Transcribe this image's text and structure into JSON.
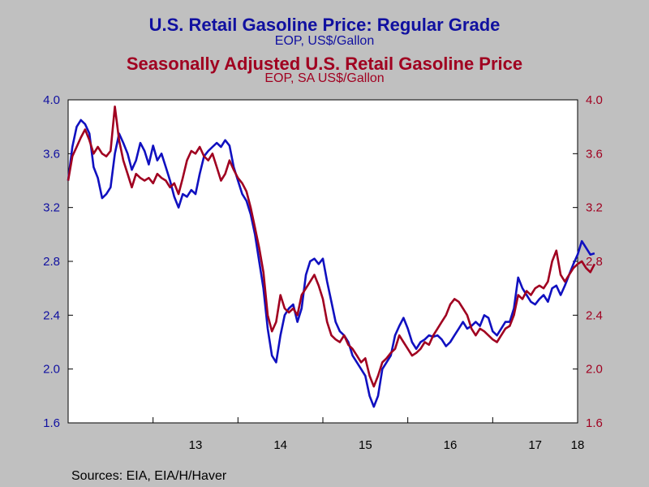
{
  "chart_data": {
    "type": "line",
    "titles": [
      {
        "text": "U.S. Retail Gasoline Price: Regular Grade",
        "color": "#1010a0"
      },
      {
        "text": "EOP, US$/Gallon",
        "color": "#1010a0"
      },
      {
        "text": "Seasonally Adjusted U.S. Retail Gasoline Price",
        "color": "#a00020"
      },
      {
        "text": "EOP, SA US$/Gallon",
        "color": "#a00020"
      }
    ],
    "y_left": {
      "min": 1.6,
      "max": 4.0,
      "ticks": [
        "1.6",
        "2.0",
        "2.4",
        "2.8",
        "3.2",
        "3.6",
        "4.0"
      ],
      "color": "#1010a0"
    },
    "y_right": {
      "min": 1.6,
      "max": 4.0,
      "ticks": [
        "1.6",
        "2.0",
        "2.4",
        "2.8",
        "3.2",
        "3.6",
        "4.0"
      ],
      "color": "#a00020"
    },
    "x_axis": {
      "min": 2012.0,
      "max": 2018.0,
      "tick_labels": [
        "13",
        "14",
        "15",
        "16",
        "17",
        "18"
      ],
      "tick_label_positions": [
        2013.5,
        2014.5,
        2015.5,
        2016.5,
        2017.5,
        2018.0
      ]
    },
    "grid": false,
    "source": "Sources:  EIA, EIA/H/Haver",
    "series": [
      {
        "color": "#1010c0",
        "points": [
          [
            2012.0,
            3.4
          ],
          [
            2012.05,
            3.65
          ],
          [
            2012.1,
            3.8
          ],
          [
            2012.15,
            3.85
          ],
          [
            2012.2,
            3.82
          ],
          [
            2012.25,
            3.75
          ],
          [
            2012.3,
            3.5
          ],
          [
            2012.35,
            3.42
          ],
          [
            2012.4,
            3.27
          ],
          [
            2012.45,
            3.3
          ],
          [
            2012.5,
            3.35
          ],
          [
            2012.55,
            3.6
          ],
          [
            2012.6,
            3.75
          ],
          [
            2012.65,
            3.68
          ],
          [
            2012.7,
            3.6
          ],
          [
            2012.75,
            3.48
          ],
          [
            2012.8,
            3.55
          ],
          [
            2012.85,
            3.68
          ],
          [
            2012.9,
            3.62
          ],
          [
            2012.95,
            3.52
          ],
          [
            2013.0,
            3.66
          ],
          [
            2013.05,
            3.55
          ],
          [
            2013.1,
            3.6
          ],
          [
            2013.15,
            3.5
          ],
          [
            2013.2,
            3.4
          ],
          [
            2013.25,
            3.28
          ],
          [
            2013.3,
            3.2
          ],
          [
            2013.35,
            3.3
          ],
          [
            2013.4,
            3.28
          ],
          [
            2013.45,
            3.33
          ],
          [
            2013.5,
            3.3
          ],
          [
            2013.55,
            3.45
          ],
          [
            2013.6,
            3.58
          ],
          [
            2013.65,
            3.62
          ],
          [
            2013.7,
            3.65
          ],
          [
            2013.75,
            3.68
          ],
          [
            2013.8,
            3.65
          ],
          [
            2013.85,
            3.7
          ],
          [
            2013.9,
            3.66
          ],
          [
            2013.95,
            3.5
          ],
          [
            2014.0,
            3.4
          ],
          [
            2014.05,
            3.3
          ],
          [
            2014.1,
            3.25
          ],
          [
            2014.15,
            3.15
          ],
          [
            2014.2,
            3.0
          ],
          [
            2014.25,
            2.8
          ],
          [
            2014.3,
            2.6
          ],
          [
            2014.35,
            2.3
          ],
          [
            2014.4,
            2.1
          ],
          [
            2014.45,
            2.05
          ],
          [
            2014.5,
            2.25
          ],
          [
            2014.55,
            2.4
          ],
          [
            2014.6,
            2.45
          ],
          [
            2014.65,
            2.48
          ],
          [
            2014.7,
            2.35
          ],
          [
            2014.75,
            2.45
          ],
          [
            2014.8,
            2.7
          ],
          [
            2014.85,
            2.8
          ],
          [
            2014.9,
            2.82
          ],
          [
            2014.95,
            2.78
          ],
          [
            2015.0,
            2.82
          ],
          [
            2015.05,
            2.65
          ],
          [
            2015.1,
            2.5
          ],
          [
            2015.15,
            2.35
          ],
          [
            2015.2,
            2.28
          ],
          [
            2015.25,
            2.25
          ],
          [
            2015.3,
            2.2
          ],
          [
            2015.35,
            2.1
          ],
          [
            2015.4,
            2.05
          ],
          [
            2015.45,
            2.0
          ],
          [
            2015.5,
            1.95
          ],
          [
            2015.55,
            1.8
          ],
          [
            2015.6,
            1.72
          ],
          [
            2015.65,
            1.8
          ],
          [
            2015.7,
            2.0
          ],
          [
            2015.75,
            2.05
          ],
          [
            2015.8,
            2.1
          ],
          [
            2015.85,
            2.25
          ],
          [
            2015.9,
            2.32
          ],
          [
            2015.95,
            2.38
          ],
          [
            2016.0,
            2.3
          ],
          [
            2016.05,
            2.2
          ],
          [
            2016.1,
            2.15
          ],
          [
            2016.15,
            2.2
          ],
          [
            2016.2,
            2.22
          ],
          [
            2016.25,
            2.25
          ],
          [
            2016.3,
            2.24
          ],
          [
            2016.35,
            2.25
          ],
          [
            2016.4,
            2.22
          ],
          [
            2016.45,
            2.17
          ],
          [
            2016.5,
            2.2
          ],
          [
            2016.55,
            2.25
          ],
          [
            2016.6,
            2.3
          ],
          [
            2016.65,
            2.35
          ],
          [
            2016.7,
            2.3
          ],
          [
            2016.75,
            2.32
          ],
          [
            2016.8,
            2.35
          ],
          [
            2016.85,
            2.32
          ],
          [
            2016.9,
            2.4
          ],
          [
            2016.95,
            2.38
          ],
          [
            2017.0,
            2.28
          ],
          [
            2017.05,
            2.25
          ],
          [
            2017.1,
            2.3
          ],
          [
            2017.15,
            2.35
          ],
          [
            2017.2,
            2.35
          ],
          [
            2017.25,
            2.45
          ],
          [
            2017.3,
            2.68
          ],
          [
            2017.35,
            2.6
          ],
          [
            2017.4,
            2.55
          ],
          [
            2017.45,
            2.5
          ],
          [
            2017.5,
            2.48
          ],
          [
            2017.55,
            2.52
          ],
          [
            2017.6,
            2.55
          ],
          [
            2017.65,
            2.5
          ],
          [
            2017.7,
            2.6
          ],
          [
            2017.75,
            2.62
          ],
          [
            2017.8,
            2.55
          ],
          [
            2017.85,
            2.62
          ],
          [
            2017.9,
            2.7
          ],
          [
            2017.95,
            2.78
          ],
          [
            2018.0,
            2.85
          ],
          [
            2018.05,
            2.95
          ],
          [
            2018.1,
            2.9
          ],
          [
            2018.15,
            2.85
          ],
          [
            2018.2,
            2.86
          ]
        ]
      },
      {
        "color": "#a00020",
        "points": [
          [
            2012.0,
            3.4
          ],
          [
            2012.05,
            3.58
          ],
          [
            2012.1,
            3.65
          ],
          [
            2012.15,
            3.72
          ],
          [
            2012.2,
            3.78
          ],
          [
            2012.25,
            3.7
          ],
          [
            2012.3,
            3.6
          ],
          [
            2012.35,
            3.65
          ],
          [
            2012.4,
            3.6
          ],
          [
            2012.45,
            3.58
          ],
          [
            2012.5,
            3.62
          ],
          [
            2012.55,
            3.95
          ],
          [
            2012.6,
            3.7
          ],
          [
            2012.65,
            3.55
          ],
          [
            2012.7,
            3.45
          ],
          [
            2012.75,
            3.35
          ],
          [
            2012.8,
            3.45
          ],
          [
            2012.85,
            3.42
          ],
          [
            2012.9,
            3.4
          ],
          [
            2012.95,
            3.42
          ],
          [
            2013.0,
            3.38
          ],
          [
            2013.05,
            3.45
          ],
          [
            2013.1,
            3.42
          ],
          [
            2013.15,
            3.4
          ],
          [
            2013.2,
            3.35
          ],
          [
            2013.25,
            3.38
          ],
          [
            2013.3,
            3.3
          ],
          [
            2013.35,
            3.42
          ],
          [
            2013.4,
            3.55
          ],
          [
            2013.45,
            3.62
          ],
          [
            2013.5,
            3.6
          ],
          [
            2013.55,
            3.65
          ],
          [
            2013.6,
            3.58
          ],
          [
            2013.65,
            3.55
          ],
          [
            2013.7,
            3.6
          ],
          [
            2013.75,
            3.5
          ],
          [
            2013.8,
            3.4
          ],
          [
            2013.85,
            3.45
          ],
          [
            2013.9,
            3.55
          ],
          [
            2013.95,
            3.48
          ],
          [
            2014.0,
            3.42
          ],
          [
            2014.05,
            3.38
          ],
          [
            2014.1,
            3.32
          ],
          [
            2014.15,
            3.2
          ],
          [
            2014.2,
            3.05
          ],
          [
            2014.25,
            2.9
          ],
          [
            2014.3,
            2.72
          ],
          [
            2014.35,
            2.4
          ],
          [
            2014.4,
            2.28
          ],
          [
            2014.45,
            2.35
          ],
          [
            2014.5,
            2.55
          ],
          [
            2014.55,
            2.45
          ],
          [
            2014.6,
            2.42
          ],
          [
            2014.65,
            2.45
          ],
          [
            2014.7,
            2.4
          ],
          [
            2014.75,
            2.55
          ],
          [
            2014.8,
            2.6
          ],
          [
            2014.85,
            2.65
          ],
          [
            2014.9,
            2.7
          ],
          [
            2014.95,
            2.62
          ],
          [
            2015.0,
            2.52
          ],
          [
            2015.05,
            2.35
          ],
          [
            2015.1,
            2.25
          ],
          [
            2015.15,
            2.22
          ],
          [
            2015.2,
            2.2
          ],
          [
            2015.25,
            2.25
          ],
          [
            2015.3,
            2.18
          ],
          [
            2015.35,
            2.15
          ],
          [
            2015.4,
            2.1
          ],
          [
            2015.45,
            2.05
          ],
          [
            2015.5,
            2.08
          ],
          [
            2015.55,
            1.95
          ],
          [
            2015.6,
            1.87
          ],
          [
            2015.65,
            1.95
          ],
          [
            2015.7,
            2.05
          ],
          [
            2015.75,
            2.08
          ],
          [
            2015.8,
            2.12
          ],
          [
            2015.85,
            2.15
          ],
          [
            2015.9,
            2.25
          ],
          [
            2015.95,
            2.2
          ],
          [
            2016.0,
            2.15
          ],
          [
            2016.05,
            2.1
          ],
          [
            2016.1,
            2.12
          ],
          [
            2016.15,
            2.15
          ],
          [
            2016.2,
            2.2
          ],
          [
            2016.25,
            2.18
          ],
          [
            2016.3,
            2.25
          ],
          [
            2016.35,
            2.3
          ],
          [
            2016.4,
            2.35
          ],
          [
            2016.45,
            2.4
          ],
          [
            2016.5,
            2.48
          ],
          [
            2016.55,
            2.52
          ],
          [
            2016.6,
            2.5
          ],
          [
            2016.65,
            2.45
          ],
          [
            2016.7,
            2.4
          ],
          [
            2016.75,
            2.3
          ],
          [
            2016.8,
            2.25
          ],
          [
            2016.85,
            2.3
          ],
          [
            2016.9,
            2.28
          ],
          [
            2016.95,
            2.25
          ],
          [
            2017.0,
            2.22
          ],
          [
            2017.05,
            2.2
          ],
          [
            2017.1,
            2.25
          ],
          [
            2017.15,
            2.3
          ],
          [
            2017.2,
            2.32
          ],
          [
            2017.25,
            2.4
          ],
          [
            2017.3,
            2.55
          ],
          [
            2017.35,
            2.52
          ],
          [
            2017.4,
            2.58
          ],
          [
            2017.45,
            2.55
          ],
          [
            2017.5,
            2.6
          ],
          [
            2017.55,
            2.62
          ],
          [
            2017.6,
            2.6
          ],
          [
            2017.65,
            2.65
          ],
          [
            2017.7,
            2.8
          ],
          [
            2017.75,
            2.88
          ],
          [
            2017.8,
            2.7
          ],
          [
            2017.85,
            2.65
          ],
          [
            2017.9,
            2.7
          ],
          [
            2017.95,
            2.75
          ],
          [
            2018.0,
            2.78
          ],
          [
            2018.05,
            2.8
          ],
          [
            2018.1,
            2.75
          ],
          [
            2018.15,
            2.72
          ],
          [
            2018.2,
            2.78
          ]
        ]
      }
    ]
  }
}
